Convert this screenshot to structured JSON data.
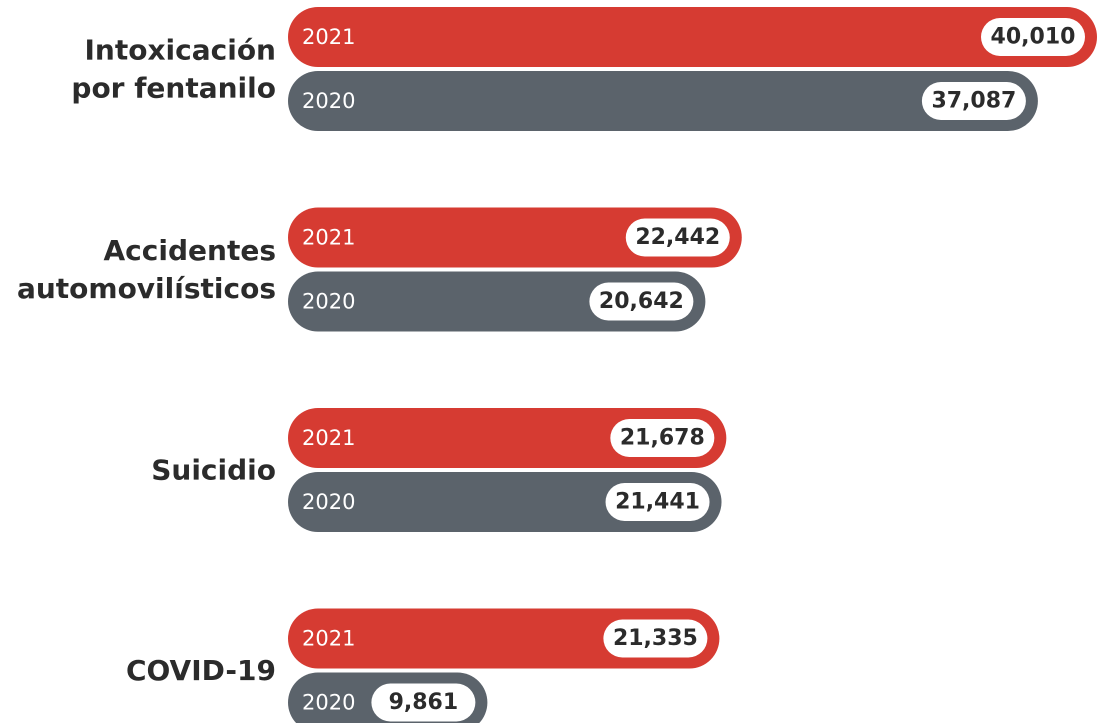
{
  "chart_data": {
    "type": "bar",
    "categories": [
      [
        "Intoxicación",
        "por fentanilo"
      ],
      [
        "Accidentes",
        "automovilísticos"
      ],
      [
        "Suicidio"
      ],
      [
        "COVID-19"
      ]
    ],
    "series": [
      {
        "name": "2021",
        "color": "#d63b32",
        "values": [
          40010,
          22442,
          21678,
          21335
        ],
        "value_labels": [
          "40,010",
          "22,442",
          "21,678",
          "21,335"
        ]
      },
      {
        "name": "2020",
        "color": "#5b636b",
        "values": [
          37087,
          20642,
          21441,
          9861
        ],
        "value_labels": [
          "37,087",
          "20,642",
          "21,441",
          "9,861"
        ]
      }
    ]
  }
}
